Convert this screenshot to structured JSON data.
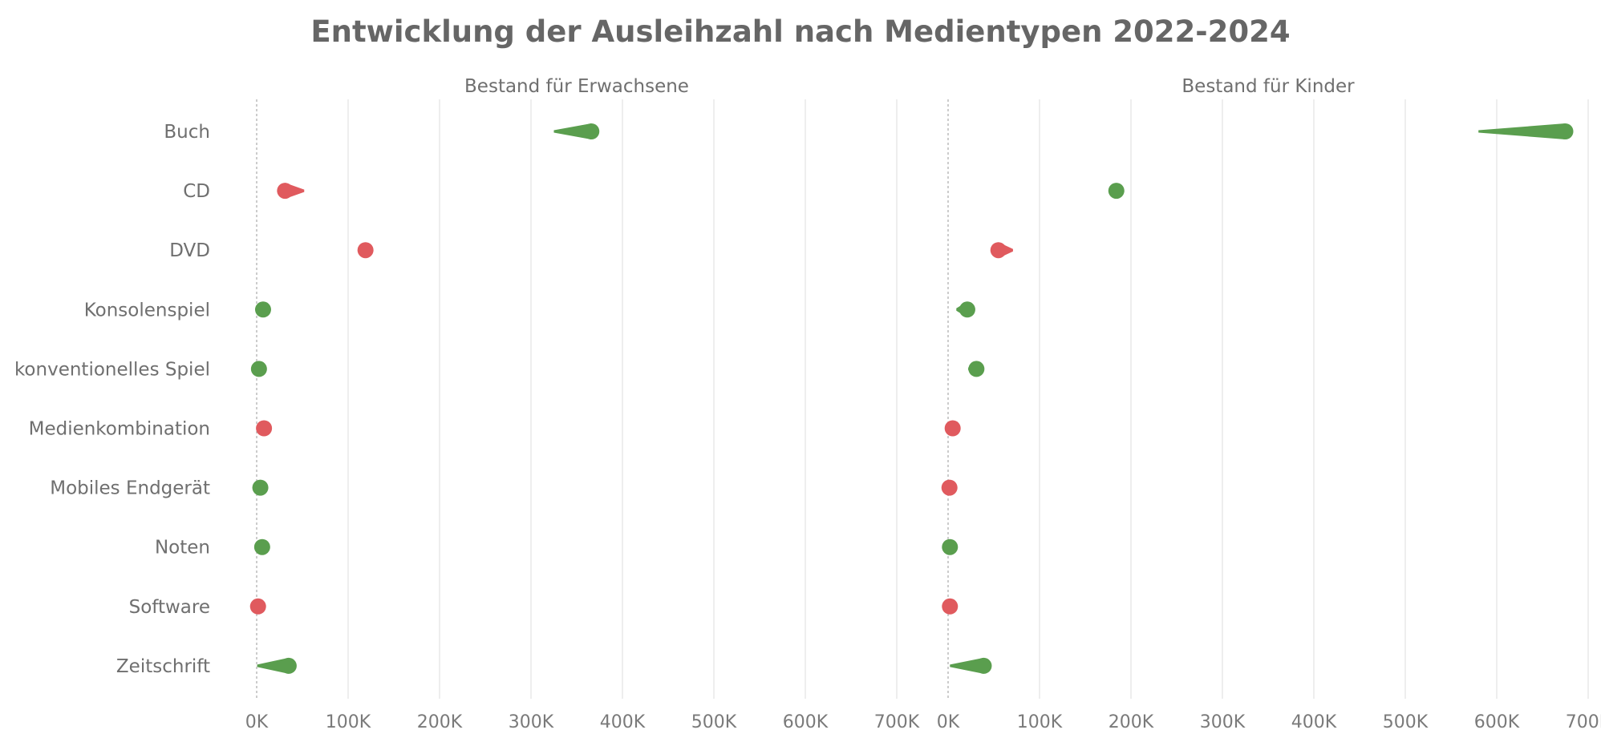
{
  "chart_data": {
    "type": "scatter",
    "title": "Entwicklung der Ausleihzahl nach Medientypen 2022-2024",
    "categories": [
      "Buch",
      "CD",
      "DVD",
      "Konsolenspiel",
      "konventionelles Spiel",
      "Medienkombination",
      "Mobiles Endgerät",
      "Noten",
      "Software",
      "Zeitschrift"
    ],
    "x_ticks": [
      "0K",
      "100K",
      "200K",
      "300K",
      "400K",
      "500K",
      "600K",
      "700K"
    ],
    "xlim": [
      0,
      700000
    ],
    "increase_color": "#5a9e4e",
    "decrease_color": "#e05a5e",
    "panels": [
      {
        "name": "Bestand für Erwachsene",
        "series": [
          {
            "category": "Buch",
            "start": 325000,
            "end": 366000
          },
          {
            "category": "CD",
            "start": 52000,
            "end": 31000
          },
          {
            "category": "DVD",
            "start": 122000,
            "end": 119000
          },
          {
            "category": "Konsolenspiel",
            "start": 5000,
            "end": 7000
          },
          {
            "category": "konventionelles Spiel",
            "start": 1500,
            "end": 2500
          },
          {
            "category": "Medienkombination",
            "start": 9000,
            "end": 8000
          },
          {
            "category": "Mobiles Endgerät",
            "start": 3500,
            "end": 4000
          },
          {
            "category": "Noten",
            "start": 5000,
            "end": 6000
          },
          {
            "category": "Software",
            "start": 2500,
            "end": 1500
          },
          {
            "category": "Zeitschrift",
            "start": 500,
            "end": 35000
          }
        ]
      },
      {
        "name": "Bestand für Kinder",
        "series": [
          {
            "category": "Buch",
            "start": 580000,
            "end": 675000
          },
          {
            "category": "CD",
            "start": 178000,
            "end": 184000
          },
          {
            "category": "DVD",
            "start": 71000,
            "end": 55000
          },
          {
            "category": "Konsolenspiel",
            "start": 9000,
            "end": 21000
          },
          {
            "category": "konventionelles Spiel",
            "start": 22000,
            "end": 31000
          },
          {
            "category": "Medienkombination",
            "start": 6000,
            "end": 5000
          },
          {
            "category": "Mobiles Endgerät",
            "start": 2500,
            "end": 1500
          },
          {
            "category": "Noten",
            "start": 1000,
            "end": 2000
          },
          {
            "category": "Software",
            "start": 3000,
            "end": 2000
          },
          {
            "category": "Zeitschrift",
            "start": 2000,
            "end": 39000
          }
        ]
      }
    ]
  }
}
